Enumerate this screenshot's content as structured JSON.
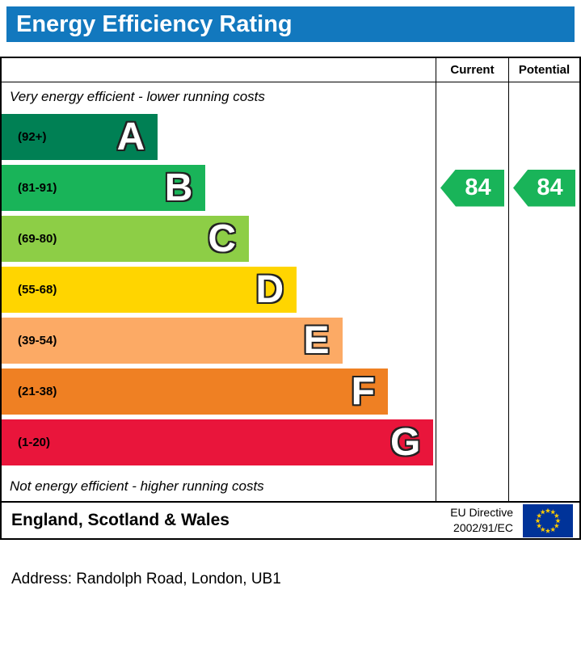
{
  "title": "Energy Efficiency Rating",
  "title_bar_color": "#1278be",
  "columns": {
    "current": "Current",
    "potential": "Potential"
  },
  "notes": {
    "top": "Very energy efficient - lower running costs",
    "bottom": "Not energy efficient - higher running costs"
  },
  "bands": [
    {
      "letter": "A",
      "range": "(92+)",
      "color": "#008054",
      "width_pct": 36
    },
    {
      "letter": "B",
      "range": "(81-91)",
      "color": "#19b459",
      "width_pct": 47
    },
    {
      "letter": "C",
      "range": "(69-80)",
      "color": "#8dce46",
      "width_pct": 57
    },
    {
      "letter": "D",
      "range": "(55-68)",
      "color": "#ffd500",
      "width_pct": 68
    },
    {
      "letter": "E",
      "range": "(39-54)",
      "color": "#fcaa65",
      "width_pct": 78.5
    },
    {
      "letter": "F",
      "range": "(21-38)",
      "color": "#ef8023",
      "width_pct": 89
    },
    {
      "letter": "G",
      "range": "(1-20)",
      "color": "#e9153b",
      "width_pct": 99.5
    }
  ],
  "ratings": {
    "current": {
      "value": "84",
      "band": "B",
      "color": "#19b459"
    },
    "potential": {
      "value": "84",
      "band": "B",
      "color": "#19b459"
    }
  },
  "footer": {
    "region": "England, Scotland & Wales",
    "directive_line1": "EU Directive",
    "directive_line2": "2002/91/EC",
    "flag_colors": {
      "field": "#003399",
      "stars": "#ffcc00"
    }
  },
  "address": "Address: Randolph Road, London, UB1",
  "chart_data": {
    "type": "bar",
    "orientation": "horizontal",
    "title": "Energy Efficiency Rating",
    "categories": [
      "A",
      "B",
      "C",
      "D",
      "E",
      "F",
      "G"
    ],
    "band_ranges": [
      "92+",
      "81-91",
      "69-80",
      "55-68",
      "39-54",
      "21-38",
      "1-20"
    ],
    "band_colors": [
      "#008054",
      "#19b459",
      "#8dce46",
      "#ffd500",
      "#fcaa65",
      "#ef8023",
      "#e9153b"
    ],
    "band_bar_width_pct": [
      36,
      47,
      57,
      68,
      78.5,
      89,
      99.5
    ],
    "series": [
      {
        "name": "Current",
        "value": 84,
        "band": "B"
      },
      {
        "name": "Potential",
        "value": 84,
        "band": "B"
      }
    ],
    "scale": [
      1,
      100
    ],
    "top_annotation": "Very energy efficient - lower running costs",
    "bottom_annotation": "Not energy efficient - higher running costs",
    "region_note": "England, Scotland & Wales",
    "directive": "EU Directive 2002/91/EC"
  }
}
